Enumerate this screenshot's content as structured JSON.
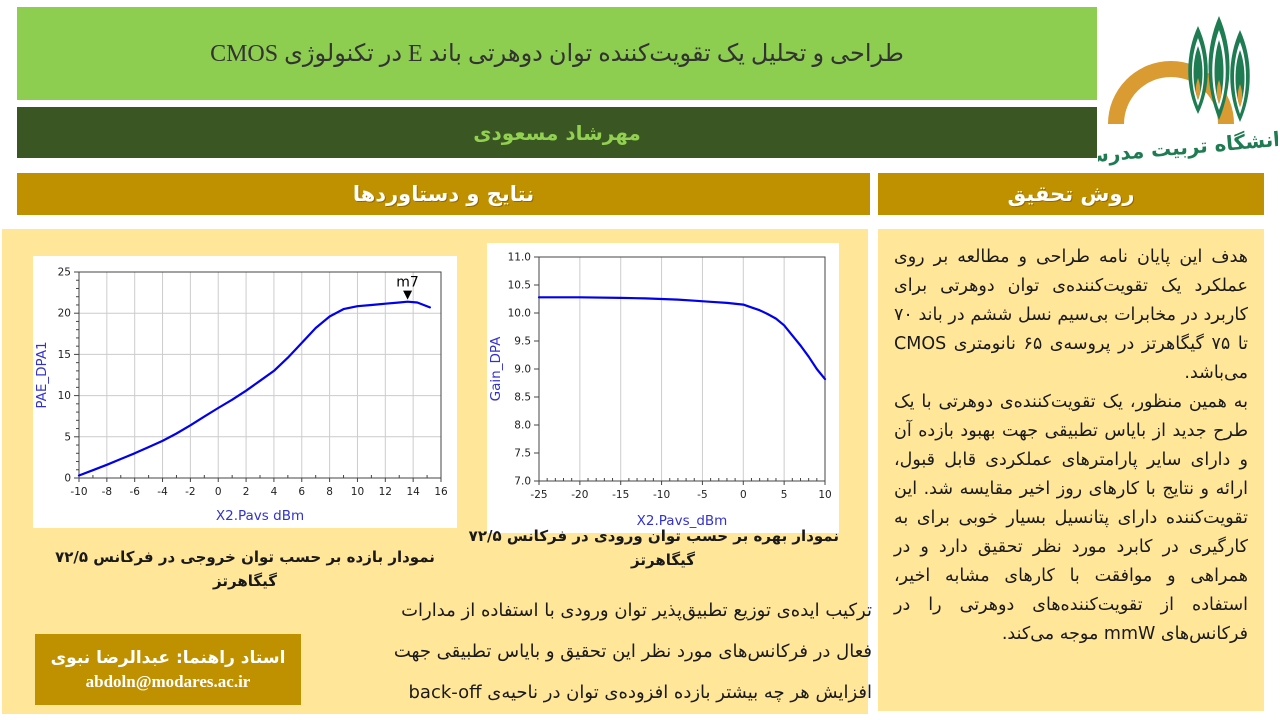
{
  "header": {
    "title": "طراحی و تحلیل یک تقویت‌کننده توان دوهرتی باند E در تکنولوژی CMOS",
    "author": "مهرشاد مسعودی",
    "logo_university": "دانشگاه تربیت مدرس"
  },
  "sections": {
    "results_title": "نتایج و دستاوردها",
    "method_title": "روش تحقیق"
  },
  "results": {
    "caption_gain": {
      "line1": "نمودار بهره بر حسب توان ورودی در فرکانس ۷۲/۵",
      "line2": "گیگاهرتز"
    },
    "caption_pae": {
      "line1": "نمودار بازده بر حسب توان خروجی در فرکانس ۷۲/۵",
      "line2": "گیگاهرتز"
    },
    "paragraph": {
      "line1": "ترکیب ایده‌ی توزیع تطبیق‌پذیر توان ورودی با استفاده از مدارات",
      "line2": "فعال در فرکانس‌های مورد نظر این تحقیق و بایاس تطبیقی جهت",
      "line3": "افزایش هر چه بیشتر بازده افزوده‌ی توان در ناحیه‌ی back-off"
    },
    "supervisor": {
      "line1": "استاد راهنما: عبدالرضا نبوی",
      "email": "abdoln@modares.ac.ir"
    }
  },
  "method": {
    "paragraph1": "هدف این پایان نامه طراحی و مطالعه بر روی عملکرد یک تقویت‌کننده‌ی توان دوهرتی برای کاربرد در مخابرات بی‌سیم نسل ششم در باند ۷۰ تا ۷۵ گیگاهرتز در پروسه‌ی ۶۵ نانومتری CMOS می‌باشد.",
    "paragraph2": "به همین منظور، یک تقویت‌کننده‌ی دوهرتی با یک طرح جدید از بایاس تطبیقی جهت بهبود بازده آن و دارای سایر پارامترهای عملکردی قابل قبول، ارائه و نتایج با کارهای روز اخیر مقایسه شد. این تقویت‌کننده دارای پتانسیل بسیار خوبی برای به کارگیری در کابرد مورد نظر تحقیق دارد و در همراهی و موافقت با کارهای مشابه اخیر، استفاده از تقویت‌کننده‌های دوهرتی را در فرکانس‌های mmW موجه می‌کند."
  },
  "colors": {
    "light_green": "#8DCE50",
    "dark_green": "#3A5622",
    "gold": "#BF9000",
    "panel_yellow": "#FFE699",
    "author_text": "#92D050",
    "curve_blue": "#0000EE",
    "axis_label_blue": "#3333CC",
    "logo_orange": "#D99B32",
    "logo_green": "#1E7B52"
  },
  "chart_data": [
    {
      "type": "line",
      "name": "pae-vs-pavs",
      "title": "",
      "xlabel": "X2.Pavs dBm",
      "ylabel": "PAE_DPA1",
      "xlim": [
        -10,
        16
      ],
      "ylim": [
        0,
        25
      ],
      "xtick_step": 2,
      "ytick_step": 5,
      "x_minor_step": 1,
      "y_minor_step": 1,
      "xdecimals": 0,
      "ydecimals": 0,
      "grid_x": true,
      "grid_y": true,
      "legend": "none",
      "line_color": "#0000EE",
      "label_color": "#3333CC",
      "margins": {
        "l": 46,
        "r": 16,
        "t": 16,
        "b": 50
      },
      "points": [
        [
          -10,
          0.3
        ],
        [
          -9,
          0.95
        ],
        [
          -8,
          1.6
        ],
        [
          -7,
          2.3
        ],
        [
          -6,
          3.0
        ],
        [
          -5,
          3.75
        ],
        [
          -4,
          4.5
        ],
        [
          -3,
          5.4
        ],
        [
          -2,
          6.4
        ],
        [
          -1,
          7.45
        ],
        [
          0,
          8.5
        ],
        [
          1,
          9.5
        ],
        [
          2,
          10.6
        ],
        [
          3,
          11.8
        ],
        [
          4,
          13.0
        ],
        [
          5,
          14.6
        ],
        [
          6,
          16.4
        ],
        [
          7,
          18.2
        ],
        [
          8,
          19.6
        ],
        [
          9,
          20.5
        ],
        [
          10,
          20.85
        ],
        [
          11,
          21.0
        ],
        [
          12,
          21.15
        ],
        [
          13,
          21.3
        ],
        [
          13.6,
          21.4
        ],
        [
          14.3,
          21.3
        ],
        [
          15.2,
          20.7
        ]
      ],
      "marker": {
        "label": "m7",
        "x": 13.6,
        "y": 21.4
      }
    },
    {
      "type": "line",
      "name": "gain-vs-pavs",
      "title": "",
      "xlabel": "X2.Pavs_dBm",
      "ylabel": "Gain_DPA",
      "xlim": [
        -25,
        10
      ],
      "ylim": [
        7.0,
        11.0
      ],
      "xtick_step": 5,
      "ytick_step": 0.5,
      "x_minor_step": 1,
      "y_minor_step": 0,
      "xdecimals": 0,
      "ydecimals": 1,
      "grid_x": true,
      "grid_y": false,
      "legend": "none",
      "line_color": "#0000EE",
      "label_color": "#3333CC",
      "margins": {
        "l": 52,
        "r": 14,
        "t": 14,
        "b": 52
      },
      "points": [
        [
          -25,
          10.28
        ],
        [
          -20,
          10.28
        ],
        [
          -15,
          10.27
        ],
        [
          -12,
          10.26
        ],
        [
          -10,
          10.25
        ],
        [
          -8,
          10.24
        ],
        [
          -6,
          10.22
        ],
        [
          -4,
          10.2
        ],
        [
          -2,
          10.18
        ],
        [
          0,
          10.15
        ],
        [
          1,
          10.1
        ],
        [
          2,
          10.05
        ],
        [
          3,
          9.98
        ],
        [
          4,
          9.9
        ],
        [
          5,
          9.78
        ],
        [
          6,
          9.6
        ],
        [
          7,
          9.42
        ],
        [
          8,
          9.22
        ],
        [
          9,
          9.0
        ],
        [
          10,
          8.82
        ]
      ],
      "marker": null
    }
  ]
}
